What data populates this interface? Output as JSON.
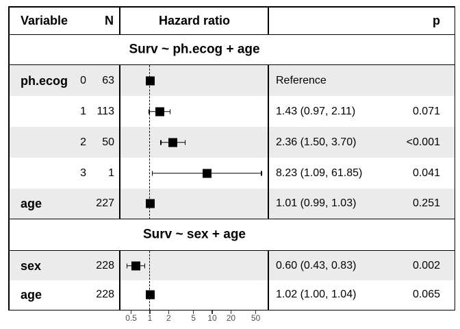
{
  "header": {
    "variable": "Variable",
    "n": "N",
    "hazard_ratio": "Hazard ratio",
    "p": "p"
  },
  "colors": {
    "band": "#ebebeb",
    "line": "#000000",
    "marker": "#000000",
    "axis_text": "#4d4d4d"
  },
  "chart_data": {
    "type": "forest",
    "x_scale": "log",
    "x_ticks": [
      0.5,
      1,
      2,
      5,
      10,
      20,
      50
    ],
    "x_range": [
      0.33,
      79
    ],
    "reference_line": 1,
    "columns": [
      "Variable",
      "N",
      "Hazard ratio",
      "p"
    ],
    "sections": [
      {
        "title": "Surv ~ ph.ecog + age",
        "rows": [
          {
            "variable": "ph.ecog",
            "level": "0",
            "n": "63",
            "hr": 1.0,
            "ci_low": null,
            "ci_high": null,
            "estimate_label": "Reference",
            "p": ""
          },
          {
            "variable": "",
            "level": "1",
            "n": "113",
            "hr": 1.43,
            "ci_low": 0.97,
            "ci_high": 2.11,
            "estimate_label": "1.43 (0.97, 2.11)",
            "p": "0.071"
          },
          {
            "variable": "",
            "level": "2",
            "n": "50",
            "hr": 2.36,
            "ci_low": 1.5,
            "ci_high": 3.7,
            "estimate_label": "2.36 (1.50, 3.70)",
            "p": "<0.001"
          },
          {
            "variable": "",
            "level": "3",
            "n": "1",
            "hr": 8.23,
            "ci_low": 1.09,
            "ci_high": 61.85,
            "estimate_label": "8.23 (1.09, 61.85)",
            "p": "0.041"
          },
          {
            "variable": "age",
            "level": "",
            "n": "227",
            "hr": 1.01,
            "ci_low": 0.99,
            "ci_high": 1.03,
            "estimate_label": "1.01 (0.99, 1.03)",
            "p": "0.251"
          }
        ]
      },
      {
        "title": "Surv ~ sex + age",
        "rows": [
          {
            "variable": "sex",
            "level": "",
            "n": "228",
            "hr": 0.6,
            "ci_low": 0.43,
            "ci_high": 0.83,
            "estimate_label": "0.60 (0.43, 0.83)",
            "p": "0.002"
          },
          {
            "variable": "age",
            "level": "",
            "n": "228",
            "hr": 1.02,
            "ci_low": 1.0,
            "ci_high": 1.04,
            "estimate_label": "1.02 (1.00, 1.04)",
            "p": "0.065"
          }
        ]
      }
    ]
  }
}
